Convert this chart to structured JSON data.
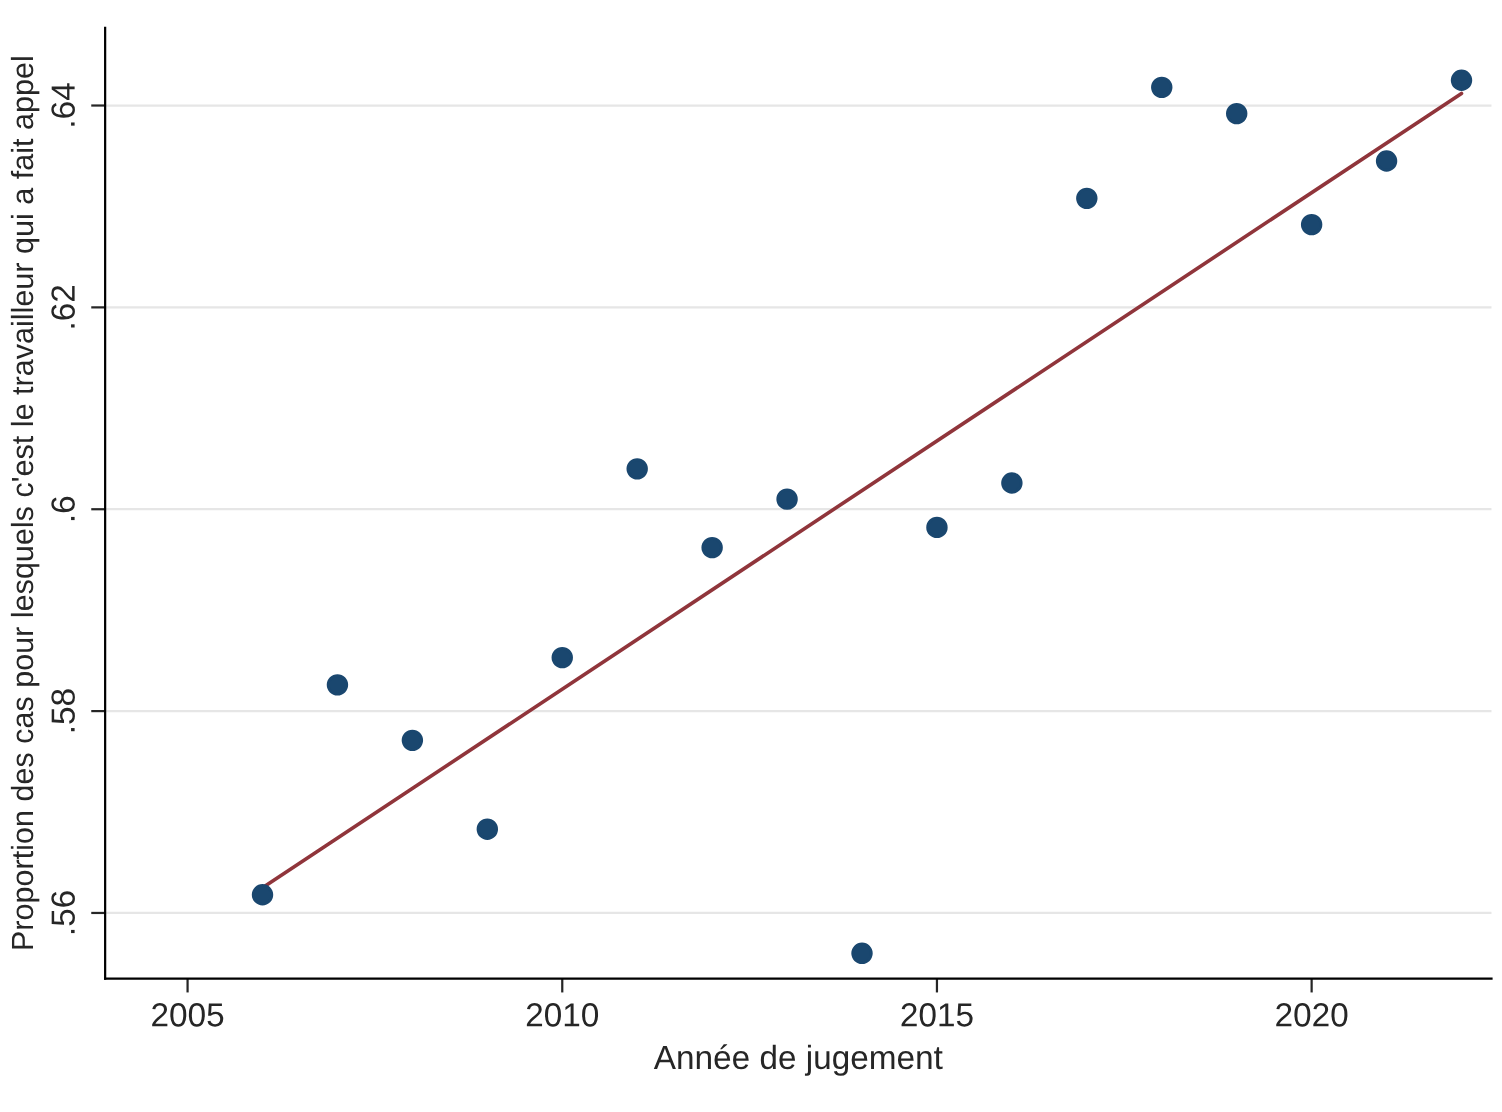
{
  "chart_data": {
    "type": "scatter",
    "xlabel": "Année de jugement",
    "ylabel": "Proportion des cas pour lesquels c'est le travailleur qui a fait appel",
    "x": [
      2006,
      2007,
      2008,
      2009,
      2010,
      2011,
      2012,
      2013,
      2014,
      2015,
      2016,
      2017,
      2018,
      2019,
      2020,
      2021,
      2022
    ],
    "series": [
      {
        "marker": "circle",
        "color": "#1a476f",
        "values": [
          0.5618,
          0.5826,
          0.5771,
          0.5683,
          0.5853,
          0.604,
          0.5962,
          0.601,
          0.556,
          0.5982,
          0.6026,
          0.6308,
          0.6418,
          0.6392,
          0.6282,
          0.6345,
          0.6425
        ]
      },
      {
        "type": "line",
        "color": "#90353b",
        "x": [
          2006,
          2022
        ],
        "values": [
          0.5625,
          0.6412
        ]
      }
    ],
    "xlim": [
      2003.9,
      2022.4
    ],
    "xticks": [
      2005,
      2010,
      2015,
      2020
    ],
    "ylim": [
      0.5535,
      0.6477
    ],
    "yticks": [
      {
        "value": 0.56,
        "label": ".56"
      },
      {
        "value": 0.58,
        "label": ".58"
      },
      {
        "value": 0.6,
        "label": ".6"
      },
      {
        "value": 0.62,
        "label": ".62"
      },
      {
        "value": 0.64,
        "label": ".64"
      }
    ],
    "grid": "y",
    "legend": false
  }
}
